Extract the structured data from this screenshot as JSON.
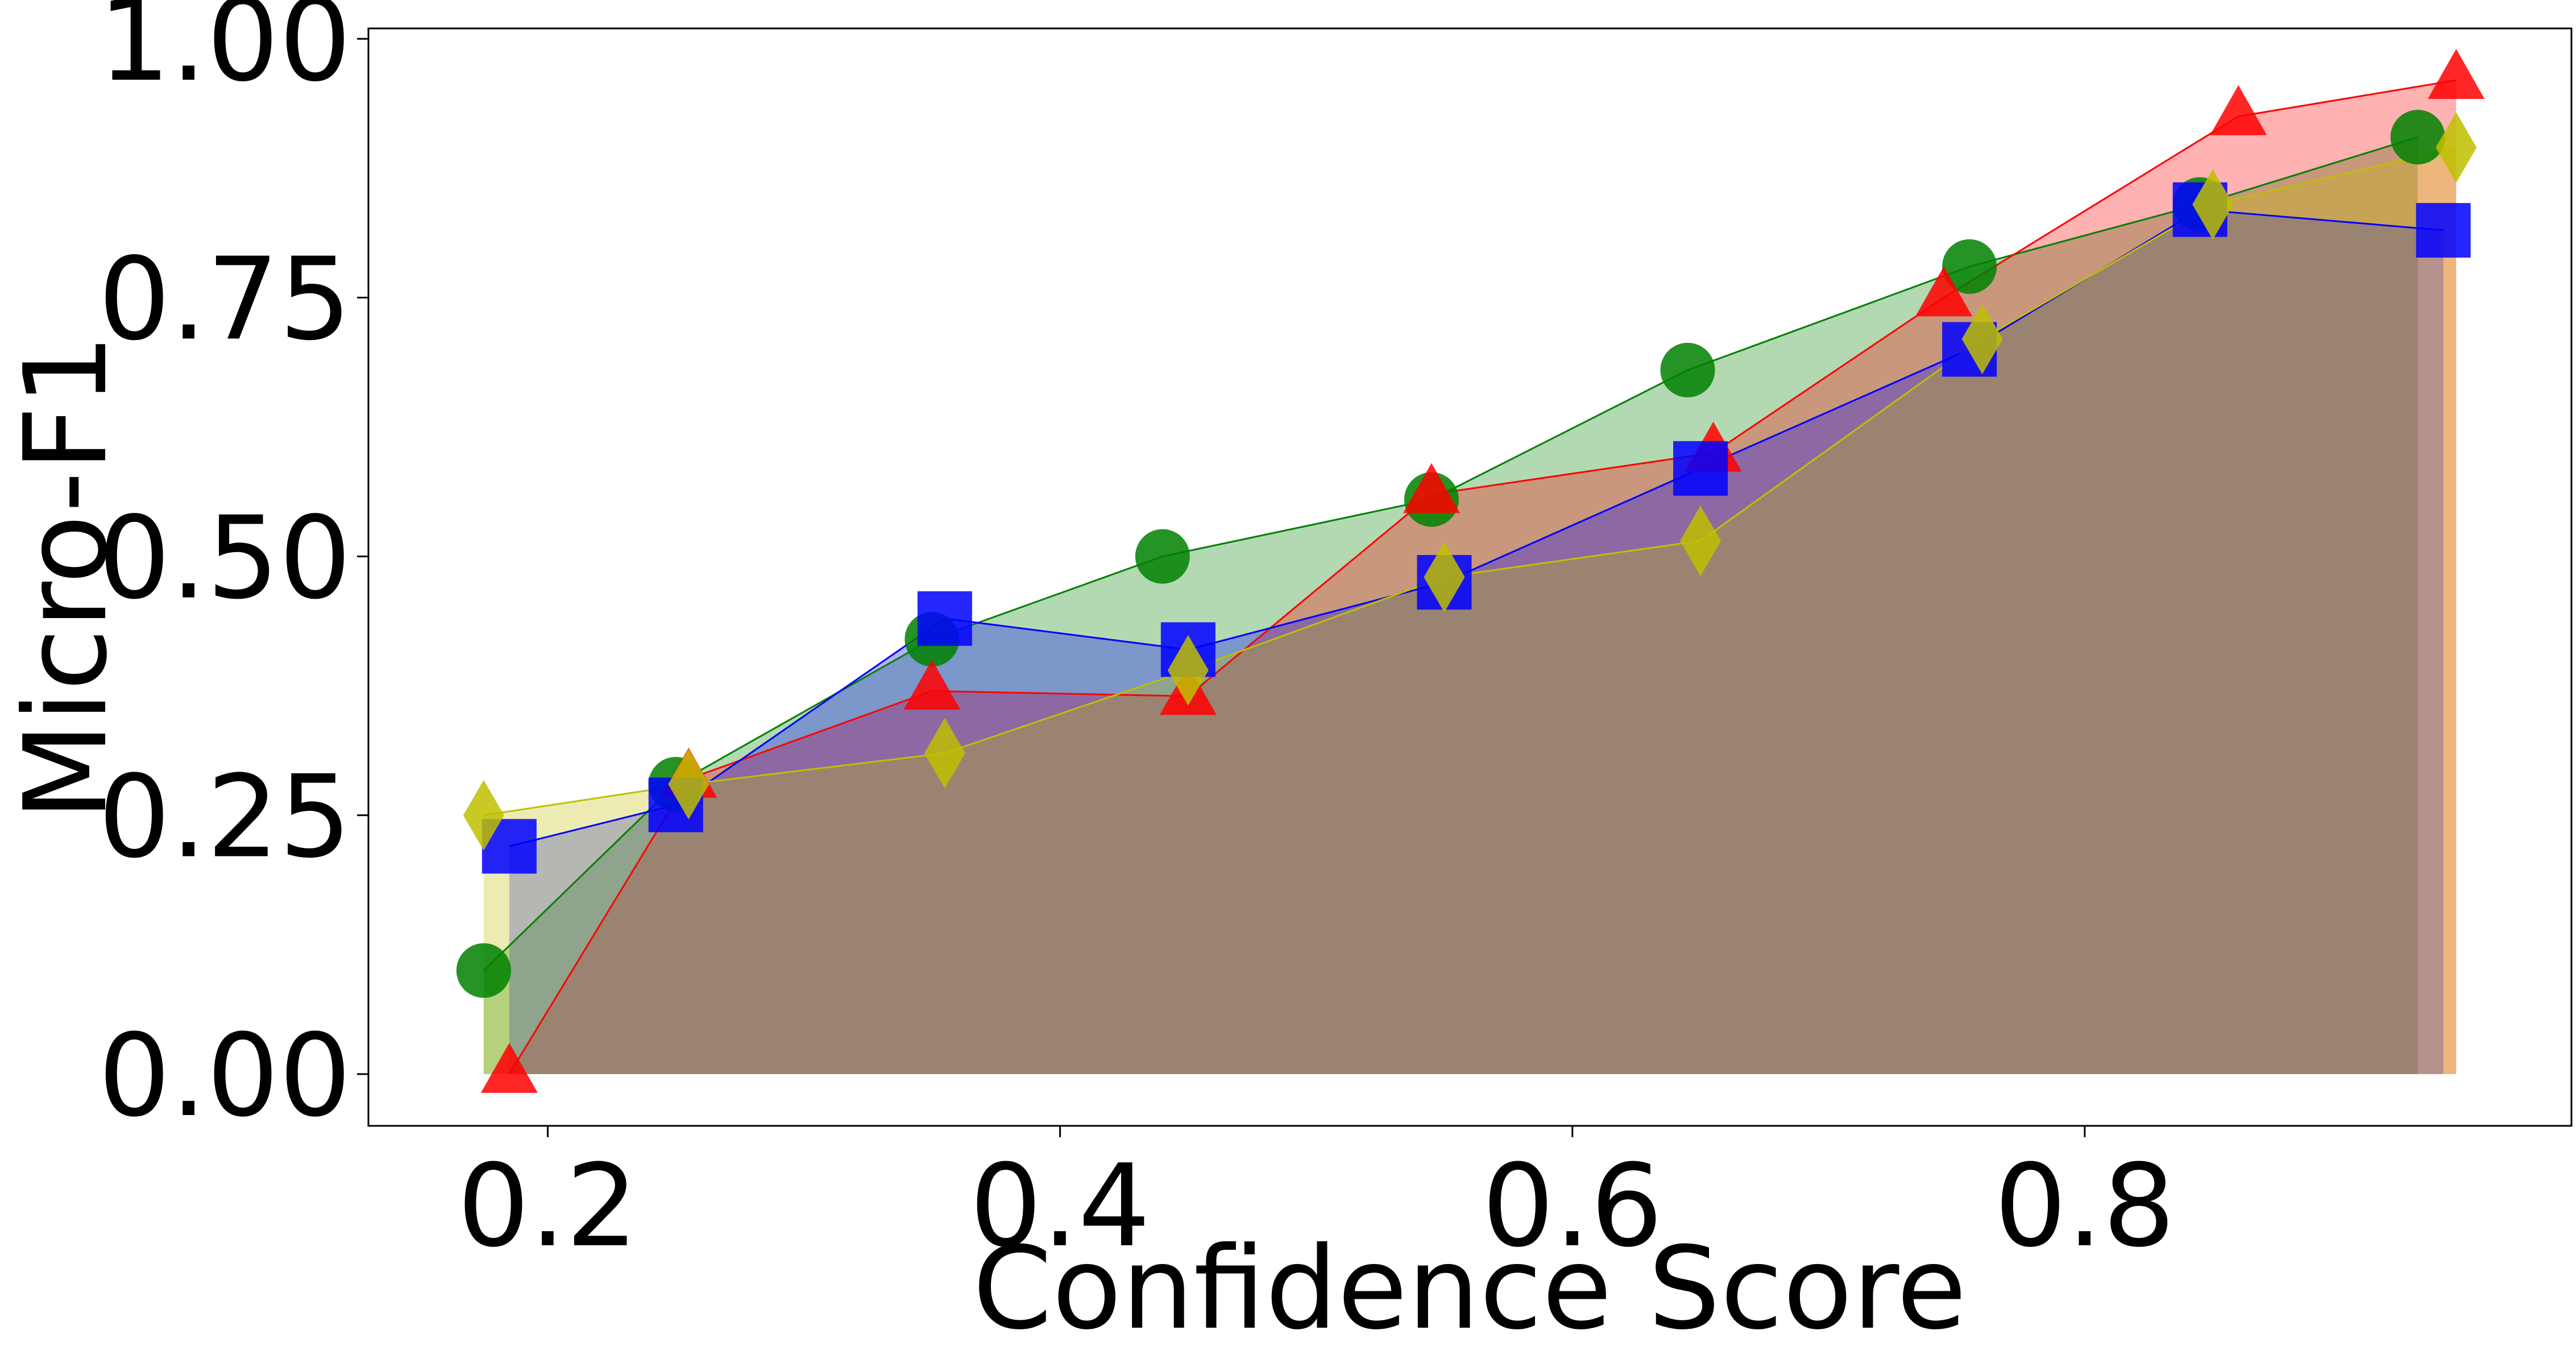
{
  "chart_data": {
    "type": "line",
    "xlabel": "Confidence Score",
    "ylabel": "Micro-F1",
    "xlim": [
      0.13,
      0.99
    ],
    "ylim": [
      -0.05,
      1.01
    ],
    "x_ticks": [
      0.2,
      0.4,
      0.6,
      0.8
    ],
    "x_tick_labels": [
      "0.2",
      "0.4",
      "0.6",
      "0.8"
    ],
    "y_ticks": [
      0.0,
      0.25,
      0.5,
      0.75,
      1.0
    ],
    "y_tick_labels": [
      "0.00",
      "0.25",
      "0.50",
      "0.75",
      "1.00"
    ],
    "grid": false,
    "legend": "none",
    "series": [
      {
        "color": "#008000",
        "marker": "circle",
        "x": [
          0.175,
          0.25,
          0.35,
          0.44,
          0.545,
          0.645,
          0.755,
          0.845,
          0.93
        ],
        "y": [
          0.1,
          0.28,
          0.42,
          0.5,
          0.555,
          0.68,
          0.78,
          0.84,
          0.905
        ]
      },
      {
        "color": "#ff0000",
        "marker": "triangle",
        "x": [
          0.185,
          0.255,
          0.35,
          0.45,
          0.545,
          0.655,
          0.745,
          0.86,
          0.945
        ],
        "y": [
          0.0,
          0.285,
          0.37,
          0.365,
          0.56,
          0.6,
          0.75,
          0.925,
          0.96
        ]
      },
      {
        "color": "#0000ff",
        "marker": "square",
        "x": [
          0.185,
          0.25,
          0.355,
          0.45,
          0.55,
          0.65,
          0.755,
          0.845,
          0.94
        ],
        "y": [
          0.22,
          0.26,
          0.44,
          0.41,
          0.475,
          0.585,
          0.7,
          0.835,
          0.815
        ]
      },
      {
        "color": "#bfbf00",
        "marker": "diamond",
        "x": [
          0.175,
          0.255,
          0.355,
          0.45,
          0.55,
          0.65,
          0.76,
          0.85,
          0.945
        ],
        "y": [
          0.25,
          0.28,
          0.31,
          0.39,
          0.48,
          0.515,
          0.71,
          0.84,
          0.895
        ]
      }
    ]
  }
}
